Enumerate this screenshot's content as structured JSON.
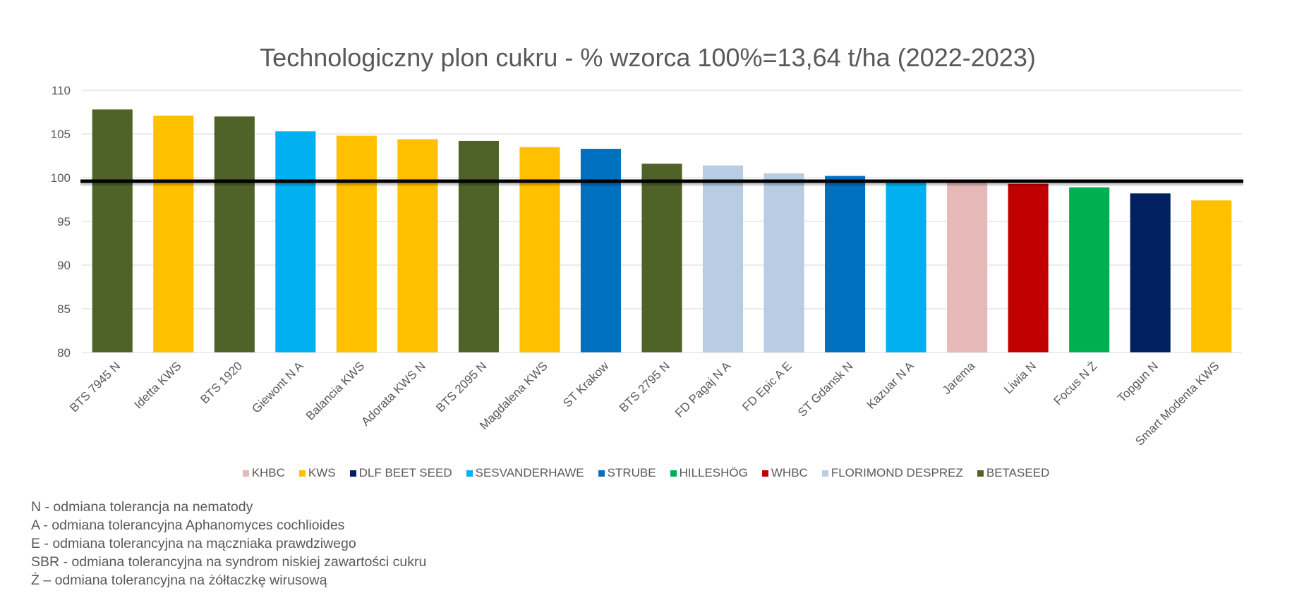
{
  "chart_data": {
    "type": "bar",
    "title": "Technologiczny plon cukru - % wzorca 100%=13,64 t/ha (2022-2023)",
    "xlabel": "",
    "ylabel": "",
    "ylim": [
      80,
      110
    ],
    "yticks": [
      80,
      85,
      90,
      95,
      100,
      105,
      110
    ],
    "grid": true,
    "legend_placement": "bottom",
    "reference_line": 100,
    "reference_line_color": "#000000",
    "categories": [
      "BTS 7945 N",
      "Idetta KWS",
      "BTS 1920",
      "Giewont N A",
      "Balancia KWS",
      "Adorata KWS N",
      "BTS 2095 N",
      "Magdalena KWS",
      "ST Krakow",
      "BTS 2795 N",
      "FD Pagaj N A",
      "FD Epic A E",
      "ST Gdansk N",
      "Kazuar N A",
      "Jarema",
      "Liwia N",
      "Focus N Ż",
      "Topgun N",
      "Smart Modenta KWS"
    ],
    "values": [
      107.8,
      107.1,
      107.0,
      105.3,
      104.8,
      104.4,
      104.2,
      103.5,
      103.3,
      101.6,
      101.4,
      100.5,
      100.2,
      99.8,
      99.7,
      99.3,
      98.9,
      98.2,
      97.4
    ],
    "breeders": [
      "BETASEED",
      "KWS",
      "BETASEED",
      "SESVANDERHAWE",
      "KWS",
      "KWS",
      "BETASEED",
      "KWS",
      "STRUBE",
      "BETASEED",
      "FLORIMOND DESPREZ",
      "FLORIMOND DESPREZ",
      "STRUBE",
      "SESVANDERHAWE",
      "KHBC",
      "WHBC",
      "HILLESHÖG",
      "DLF BEET SEED",
      "KWS"
    ],
    "legend": [
      {
        "name": "KHBC",
        "color": "#E6B8B7"
      },
      {
        "name": "KWS",
        "color": "#FFC000"
      },
      {
        "name": "DLF BEET SEED",
        "color": "#002060"
      },
      {
        "name": "SESVANDERHAWE",
        "color": "#00B0F0"
      },
      {
        "name": "STRUBE",
        "color": "#0070C0"
      },
      {
        "name": "HILLESHÖG",
        "color": "#00B050"
      },
      {
        "name": "WHBC",
        "color": "#C00000"
      },
      {
        "name": "FLORIMOND DESPREZ",
        "color": "#B8CCE4"
      },
      {
        "name": "BETASEED",
        "color": "#4F6228"
      }
    ]
  },
  "notes": [
    "N - odmiana tolerancja na nematody",
    "A - odmiana tolerancyjna Aphanomyces cochlioides",
    "E - odmiana tolerancyjna na mączniaka prawdziwego",
    "SBR - odmiana tolerancyjna na syndrom niskiej zawartości cukru",
    "Ż – odmiana tolerancyjna na żółtaczkę wirusową"
  ]
}
